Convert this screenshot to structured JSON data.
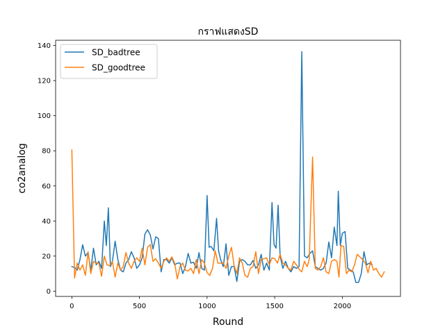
{
  "chart_data": {
    "type": "line",
    "title": "กราฟแสดงSD",
    "xlabel": "Round",
    "ylabel": "co2analog",
    "xlim": [
      -120,
      2430
    ],
    "ylim": [
      -3,
      143
    ],
    "xticks": [
      0,
      500,
      1000,
      1500,
      2000
    ],
    "yticks": [
      0,
      20,
      40,
      60,
      80,
      100,
      120,
      140
    ],
    "grid": false,
    "legend_position": "top-left",
    "series": [
      {
        "name": "SD_badtree",
        "color": "#1f77b4",
        "points": [
          [
            0,
            14
          ],
          [
            20,
            13.5
          ],
          [
            40,
            12
          ],
          [
            60,
            18
          ],
          [
            80,
            26.5
          ],
          [
            100,
            20
          ],
          [
            120,
            22
          ],
          [
            140,
            12
          ],
          [
            160,
            24.5
          ],
          [
            180,
            15
          ],
          [
            200,
            17
          ],
          [
            220,
            13
          ],
          [
            240,
            40
          ],
          [
            255,
            26
          ],
          [
            270,
            47.5
          ],
          [
            285,
            14
          ],
          [
            300,
            17
          ],
          [
            320,
            28.5
          ],
          [
            340,
            18
          ],
          [
            360,
            12
          ],
          [
            380,
            11
          ],
          [
            400,
            16
          ],
          [
            420,
            18
          ],
          [
            440,
            22.5
          ],
          [
            460,
            19
          ],
          [
            480,
            13
          ],
          [
            500,
            15
          ],
          [
            520,
            19
          ],
          [
            540,
            32.5
          ],
          [
            560,
            35
          ],
          [
            580,
            32
          ],
          [
            600,
            24
          ],
          [
            620,
            31
          ],
          [
            640,
            30
          ],
          [
            660,
            11
          ],
          [
            680,
            18
          ],
          [
            700,
            18
          ],
          [
            720,
            16
          ],
          [
            740,
            19
          ],
          [
            760,
            15
          ],
          [
            780,
            16
          ],
          [
            800,
            16
          ],
          [
            820,
            10
          ],
          [
            840,
            14
          ],
          [
            860,
            21.5
          ],
          [
            880,
            16
          ],
          [
            900,
            16.5
          ],
          [
            920,
            13
          ],
          [
            940,
            22
          ],
          [
            960,
            13
          ],
          [
            980,
            12
          ],
          [
            1000,
            54.5
          ],
          [
            1015,
            25
          ],
          [
            1030,
            25.5
          ],
          [
            1050,
            23
          ],
          [
            1070,
            41.5
          ],
          [
            1085,
            23
          ],
          [
            1100,
            18
          ],
          [
            1120,
            14
          ],
          [
            1140,
            27
          ],
          [
            1160,
            9
          ],
          [
            1180,
            14
          ],
          [
            1200,
            14
          ],
          [
            1220,
            5.5
          ],
          [
            1240,
            17
          ],
          [
            1260,
            18
          ],
          [
            1280,
            17
          ],
          [
            1300,
            15
          ],
          [
            1320,
            15
          ],
          [
            1340,
            17.5
          ],
          [
            1360,
            13
          ],
          [
            1380,
            15
          ],
          [
            1400,
            21
          ],
          [
            1420,
            12
          ],
          [
            1440,
            16
          ],
          [
            1460,
            12
          ],
          [
            1480,
            50.5
          ],
          [
            1495,
            26.5
          ],
          [
            1510,
            24.5
          ],
          [
            1525,
            49
          ],
          [
            1540,
            20
          ],
          [
            1560,
            13
          ],
          [
            1580,
            17
          ],
          [
            1600,
            13
          ],
          [
            1620,
            11
          ],
          [
            1640,
            14
          ],
          [
            1660,
            13
          ],
          [
            1680,
            14
          ],
          [
            1700,
            136.5
          ],
          [
            1720,
            20
          ],
          [
            1740,
            19
          ],
          [
            1760,
            21.5
          ],
          [
            1780,
            23
          ],
          [
            1800,
            14
          ],
          [
            1820,
            13
          ],
          [
            1840,
            12
          ],
          [
            1860,
            13
          ],
          [
            1880,
            16
          ],
          [
            1900,
            28
          ],
          [
            1920,
            19
          ],
          [
            1940,
            36.5
          ],
          [
            1960,
            26
          ],
          [
            1970,
            57
          ],
          [
            1985,
            26
          ],
          [
            2000,
            33
          ],
          [
            2020,
            34
          ],
          [
            2040,
            13
          ],
          [
            2060,
            12
          ],
          [
            2080,
            11
          ],
          [
            2100,
            5
          ],
          [
            2120,
            5
          ],
          [
            2140,
            10
          ],
          [
            2160,
            22.5
          ],
          [
            2180,
            15
          ],
          [
            2200,
            16
          ],
          [
            2220,
            15
          ]
        ]
      },
      {
        "name": "SD_goodtree",
        "color": "#ff7f0e",
        "points": [
          [
            0,
            80.5
          ],
          [
            20,
            7.5
          ],
          [
            40,
            16
          ],
          [
            60,
            12
          ],
          [
            80,
            15
          ],
          [
            100,
            9
          ],
          [
            120,
            22.5
          ],
          [
            140,
            10
          ],
          [
            160,
            17
          ],
          [
            180,
            16
          ],
          [
            200,
            16
          ],
          [
            220,
            8.5
          ],
          [
            240,
            20
          ],
          [
            260,
            15
          ],
          [
            280,
            14.5
          ],
          [
            300,
            17
          ],
          [
            320,
            8
          ],
          [
            340,
            16
          ],
          [
            360,
            12
          ],
          [
            380,
            14
          ],
          [
            400,
            22
          ],
          [
            420,
            16
          ],
          [
            440,
            13
          ],
          [
            460,
            17
          ],
          [
            480,
            19
          ],
          [
            500,
            17
          ],
          [
            520,
            24.5
          ],
          [
            540,
            15
          ],
          [
            560,
            25
          ],
          [
            580,
            26.5
          ],
          [
            600,
            17
          ],
          [
            620,
            18.5
          ],
          [
            640,
            16
          ],
          [
            660,
            13
          ],
          [
            680,
            17
          ],
          [
            700,
            19
          ],
          [
            720,
            17
          ],
          [
            740,
            19.5
          ],
          [
            760,
            16
          ],
          [
            780,
            7
          ],
          [
            800,
            14
          ],
          [
            820,
            16
          ],
          [
            840,
            12
          ],
          [
            860,
            11.5
          ],
          [
            880,
            13
          ],
          [
            900,
            10
          ],
          [
            920,
            18
          ],
          [
            940,
            10
          ],
          [
            960,
            18
          ],
          [
            980,
            16
          ],
          [
            1000,
            10.5
          ],
          [
            1020,
            9
          ],
          [
            1040,
            13
          ],
          [
            1060,
            23
          ],
          [
            1080,
            16
          ],
          [
            1100,
            16
          ],
          [
            1120,
            16
          ],
          [
            1140,
            13
          ],
          [
            1160,
            20
          ],
          [
            1180,
            25
          ],
          [
            1200,
            14.5
          ],
          [
            1220,
            10
          ],
          [
            1240,
            19
          ],
          [
            1260,
            16
          ],
          [
            1280,
            9
          ],
          [
            1300,
            8
          ],
          [
            1320,
            13
          ],
          [
            1340,
            14
          ],
          [
            1360,
            22.5
          ],
          [
            1380,
            10
          ],
          [
            1400,
            18
          ],
          [
            1420,
            18.5
          ],
          [
            1440,
            19
          ],
          [
            1460,
            15
          ],
          [
            1480,
            19
          ],
          [
            1500,
            18.5
          ],
          [
            1520,
            16
          ],
          [
            1540,
            21
          ],
          [
            1560,
            16
          ],
          [
            1580,
            15
          ],
          [
            1600,
            13
          ],
          [
            1620,
            12
          ],
          [
            1640,
            17
          ],
          [
            1660,
            15
          ],
          [
            1680,
            12.5
          ],
          [
            1700,
            11
          ],
          [
            1720,
            17
          ],
          [
            1740,
            14
          ],
          [
            1755,
            18
          ],
          [
            1780,
            76.5
          ],
          [
            1800,
            13
          ],
          [
            1820,
            12
          ],
          [
            1840,
            14
          ],
          [
            1860,
            19
          ],
          [
            1880,
            11
          ],
          [
            1900,
            10
          ],
          [
            1920,
            17
          ],
          [
            1940,
            18
          ],
          [
            1960,
            17
          ],
          [
            1975,
            8
          ],
          [
            1990,
            26
          ],
          [
            2010,
            25.5
          ],
          [
            2030,
            10
          ],
          [
            2050,
            12
          ],
          [
            2070,
            11
          ],
          [
            2090,
            15
          ],
          [
            2110,
            21
          ],
          [
            2130,
            19.5
          ],
          [
            2150,
            18
          ],
          [
            2170,
            16
          ],
          [
            2190,
            10.5
          ],
          [
            2210,
            17
          ],
          [
            2230,
            12
          ],
          [
            2250,
            13
          ],
          [
            2270,
            10
          ],
          [
            2290,
            8
          ],
          [
            2310,
            11
          ]
        ]
      }
    ]
  }
}
